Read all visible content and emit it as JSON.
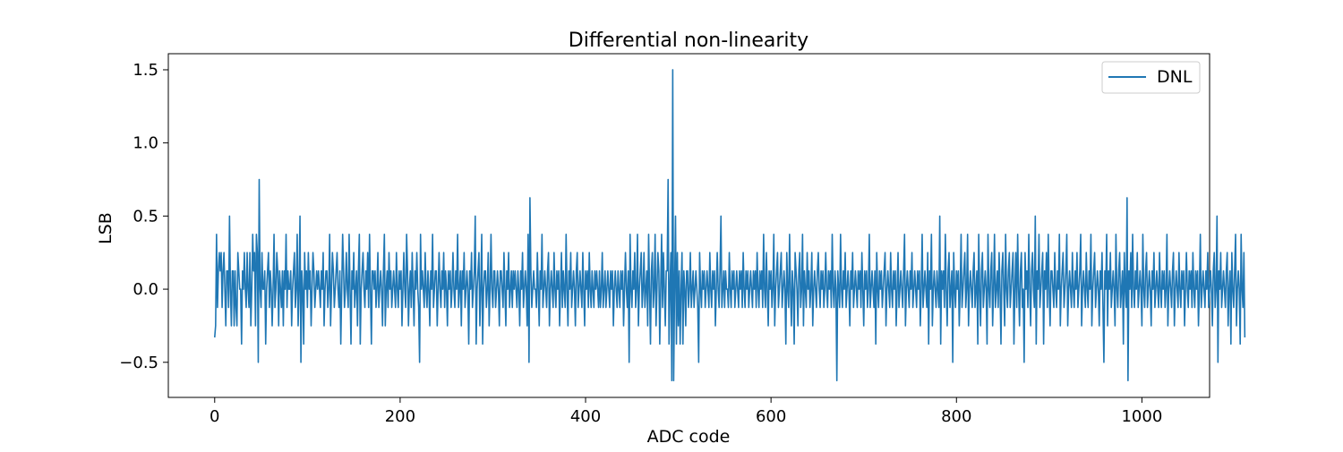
{
  "chart_data": {
    "type": "line",
    "title": "Differential non-linearity",
    "xlabel": "ADC code",
    "ylabel": "LSB",
    "xlim": [
      -50,
      1073
    ],
    "ylim": [
      -0.74,
      1.61
    ],
    "xticks": [
      0,
      200,
      400,
      600,
      800,
      1000
    ],
    "xtick_labels": [
      "0",
      "200",
      "400",
      "600",
      "800",
      "1000"
    ],
    "yticks": [
      -0.5,
      0.0,
      0.5,
      1.0,
      1.5
    ],
    "ytick_labels": [
      "−0.5",
      "0.0",
      "0.5",
      "1.0",
      "1.5"
    ],
    "grid": false,
    "legend": {
      "position": "top-right",
      "entries": [
        {
          "label": "DNL",
          "color": "#1f77b4"
        }
      ]
    },
    "series": [
      {
        "name": "DNL",
        "color": "#1f77b4",
        "x_start": 0,
        "x_step": 1,
        "values": [
          -0.33,
          -0.25,
          0.375,
          -0.125,
          0.125,
          0.25,
          0.125,
          0.25,
          -0.125,
          0.125,
          0.25,
          0.0,
          -0.25,
          0.125,
          0.125,
          -0.125,
          0.5,
          0.0,
          -0.25,
          0.125,
          0.125,
          -0.25,
          0.125,
          -0.125,
          -0.25,
          0.25,
          0.125,
          0.0,
          0.0,
          -0.375,
          0.125,
          0.0,
          0.25,
          0.0,
          -0.125,
          0.25,
          0.0,
          -0.125,
          0.25,
          -0.25,
          0.0,
          0.375,
          0.125,
          0.25,
          -0.25,
          0.375,
          0.25,
          -0.5,
          0.75,
          0.0,
          -0.125,
          0.25,
          0.0,
          0.0,
          0.125,
          -0.375,
          0.0,
          0.125,
          0.25,
          -0.125,
          0.125,
          0.0,
          -0.25,
          0.0,
          0.375,
          -0.125,
          0.0,
          0.25,
          0.125,
          -0.25,
          0.125,
          0.0,
          -0.125,
          0.125,
          -0.25,
          0.125,
          0.0,
          0.375,
          -0.125,
          0.125,
          0.0,
          0.0,
          0.125,
          -0.25,
          0.0,
          0.125,
          0.25,
          -0.125,
          0.0,
          0.375,
          -0.25,
          0.0,
          0.5,
          -0.5,
          0.125,
          0.0,
          -0.375,
          0.25,
          0.0,
          0.125,
          -0.125,
          0.25,
          0.0,
          0.125,
          -0.25,
          0.0,
          0.25,
          0.125,
          -0.125,
          0.0,
          0.125,
          0.0,
          0.125,
          0.0,
          -0.125,
          0.125,
          0.0,
          0.25,
          -0.25,
          0.0,
          0.125,
          0.125,
          -0.125,
          0.0,
          0.375,
          -0.25,
          0.0,
          0.25,
          0.125,
          -0.125,
          0.0,
          0.125,
          0.25,
          0.0,
          -0.125,
          0.125,
          -0.375,
          0.0,
          0.375,
          0.125,
          -0.125,
          0.0,
          0.25,
          0.0,
          -0.125,
          0.375,
          0.0,
          -0.375,
          0.125,
          0.0,
          0.25,
          -0.125,
          0.0,
          0.125,
          -0.25,
          0.125,
          0.375,
          -0.375,
          0.0,
          0.125,
          0.25,
          0.0,
          -0.125,
          0.125,
          0.0,
          0.25,
          -0.125,
          0.375,
          0.0,
          -0.375,
          0.125,
          0.125,
          0.0,
          0.125,
          -0.125,
          0.0,
          0.25,
          -0.125,
          0.0,
          0.125,
          0.0,
          -0.25,
          0.125,
          0.375,
          -0.25,
          0.0,
          0.125,
          -0.125,
          0.25,
          0.0,
          0.125,
          -0.125,
          0.0,
          0.125,
          0.0,
          -0.125,
          0.25,
          0.0,
          -0.125,
          0.125,
          0.0,
          0.125,
          -0.25,
          0.0,
          0.25,
          0.0,
          -0.125,
          0.375,
          0.125,
          -0.25,
          0.0,
          0.125,
          -0.125,
          0.25,
          0.0,
          -0.25,
          0.125,
          0.0,
          0.25,
          0.0,
          -0.125,
          -0.5,
          0.375,
          0.0,
          0.125,
          0.0,
          -0.125,
          0.25,
          0.0,
          -0.125,
          0.125,
          0.0,
          -0.25,
          0.125,
          0.0,
          0.375,
          -0.125,
          0.0,
          0.125,
          0.125,
          -0.25,
          0.0,
          0.25,
          0.0,
          -0.125,
          0.125,
          0.0,
          0.25,
          -0.125,
          0.125,
          0.0,
          -0.25,
          0.125,
          0.0,
          0.125,
          -0.125,
          0.0,
          0.25,
          0.0,
          -0.125,
          0.125,
          0.0,
          0.375,
          -0.125,
          0.0,
          0.125,
          -0.25,
          0.125,
          0.0,
          0.25,
          -0.125,
          0.0,
          0.125,
          0.0,
          -0.375,
          0.125,
          0.0,
          0.25,
          -0.125,
          0.0,
          0.125,
          0.5,
          -0.375,
          0.0,
          0.125,
          0.25,
          -0.25,
          0.0,
          0.375,
          -0.375,
          0.0,
          0.125,
          0.125,
          -0.125,
          0.0,
          0.25,
          -0.25,
          0.0,
          0.375,
          0.0,
          -0.125,
          0.125,
          0.125,
          -0.125,
          0.0,
          0.125,
          0.0,
          -0.25,
          0.125,
          0.125,
          0.0,
          -0.125,
          0.25,
          0.0,
          -0.25,
          0.125,
          0.0,
          0.25,
          -0.125,
          0.0,
          0.125,
          -0.125,
          0.125,
          0.0,
          0.125,
          0.0,
          -0.125,
          0.125,
          0.0,
          -0.25,
          0.125,
          0.0,
          0.25,
          -0.125,
          0.0,
          0.125,
          0.0,
          -0.25,
          0.375,
          -0.5,
          0.625,
          0.125,
          -0.125,
          0.0,
          0.125,
          0.0,
          0.0,
          -0.125,
          0.25,
          0.0,
          -0.25,
          0.125,
          0.0,
          0.375,
          -0.125,
          0.0,
          0.125,
          0.0,
          -0.125,
          0.125,
          0.25,
          -0.25,
          0.0,
          0.125,
          0.0,
          -0.125,
          0.25,
          0.0,
          -0.125,
          0.125,
          0.0,
          0.125,
          -0.25,
          0.0,
          0.25,
          -0.125,
          0.125,
          0.0,
          -0.125,
          0.375,
          0.0,
          -0.25,
          0.125,
          0.0,
          0.25,
          -0.125,
          0.0,
          0.125,
          0.0,
          -0.25,
          0.125,
          0.25,
          -0.125,
          0.0,
          0.125,
          0.0,
          -0.125,
          0.25,
          0.0,
          -0.25,
          0.125,
          0.0,
          0.125,
          -0.125,
          0.25,
          0.0,
          -0.125,
          0.125,
          0.0,
          -0.125,
          0.125,
          0.0,
          0.125,
          0.0,
          -0.125,
          0.125,
          -0.125,
          0.0,
          0.25,
          -0.125,
          0.0,
          0.125,
          -0.125,
          0.0,
          0.125,
          0.0,
          -0.125,
          0.125,
          0.0,
          0.125,
          -0.25,
          0.0,
          0.125,
          0.0,
          -0.125,
          0.125,
          0.0,
          -0.125,
          0.125,
          0.0,
          0.125,
          -0.25,
          0.0,
          0.25,
          0.0,
          -0.125,
          0.125,
          -0.5,
          0.375,
          0.0,
          -0.125,
          0.125,
          0.0,
          0.25,
          -0.125,
          0.0,
          0.375,
          -0.25,
          0.0,
          0.125,
          0.25,
          -0.125,
          0.0,
          0.25,
          -0.125,
          0.0,
          0.125,
          -0.25,
          0.375,
          0.0,
          -0.375,
          0.125,
          0.25,
          -0.125,
          0.0,
          0.375,
          -0.25,
          0.0,
          0.25,
          0.125,
          -0.375,
          0.0,
          0.375,
          -0.125,
          0.25,
          0.0,
          -0.25,
          0.125,
          0.125,
          0.75,
          -0.375,
          0.0,
          0.25,
          -0.625,
          1.5,
          -0.625,
          0.0,
          0.5,
          -0.375,
          0.25,
          -0.25,
          0.125,
          -0.375,
          0.0,
          0.25,
          -0.375,
          0.125,
          0.0,
          -0.25,
          0.125,
          0.125,
          -0.125,
          0.0,
          0.25,
          -0.125,
          0.0,
          0.125,
          -0.125,
          0.0,
          0.125,
          0.0,
          -0.125,
          -0.5,
          0.25,
          0.0,
          -0.125,
          0.125,
          0.0,
          0.125,
          -0.125,
          0.0,
          0.125,
          0.0,
          -0.125,
          0.25,
          0.0,
          -0.125,
          0.125,
          0.0,
          0.125,
          -0.25,
          0.0,
          0.25,
          0.0,
          -0.125,
          0.125,
          0.5,
          -0.125,
          0.0,
          0.125,
          -0.125,
          0.125,
          0.0,
          0.0,
          -0.125,
          0.25,
          0.0,
          -0.125,
          0.125,
          0.0,
          0.125,
          -0.125,
          0.0,
          0.125,
          0.0,
          -0.125,
          0.125,
          0.0,
          0.125,
          -0.125,
          0.25,
          0.0,
          -0.125,
          0.125,
          0.0,
          0.125,
          -0.125,
          0.0,
          0.125,
          0.0,
          -0.125,
          0.125,
          0.0,
          0.125,
          -0.125,
          0.25,
          0.0,
          -0.125,
          0.125,
          0.0,
          0.125,
          -0.125,
          0.375,
          0.0,
          -0.125,
          0.25,
          0.0,
          -0.25,
          0.125,
          0.0,
          0.125,
          -0.125,
          0.0,
          0.375,
          -0.25,
          0.0,
          0.125,
          0.25,
          -0.125,
          0.0,
          0.125,
          0.25,
          -0.125,
          0.0,
          0.125,
          0.0,
          -0.375,
          0.25,
          0.0,
          -0.125,
          0.375,
          0.0,
          -0.25,
          0.125,
          0.0,
          -0.375,
          0.25,
          0.125,
          0.0,
          -0.25,
          0.125,
          0.25,
          -0.125,
          0.0,
          0.375,
          -0.25,
          0.125,
          0.0,
          -0.125,
          0.25,
          0.0,
          0.125,
          -0.125,
          0.0,
          0.25,
          -0.25,
          0.0,
          0.125,
          0.0,
          -0.125,
          0.125,
          0.25,
          0.0,
          -0.125,
          0.125,
          0.0,
          0.125,
          -0.125,
          0.0,
          0.25,
          0.0,
          -0.125,
          0.125,
          0.0,
          0.125,
          -0.125,
          0.375,
          0.0,
          -0.125,
          0.125,
          0.0,
          -0.625,
          0.125,
          0.0,
          -0.125,
          0.375,
          0.0,
          -0.125,
          0.125,
          0.0,
          0.25,
          -0.125,
          0.0,
          0.125,
          0.0,
          -0.25,
          0.125,
          0.0,
          0.25,
          -0.125,
          0.0,
          0.125,
          0.0,
          -0.125,
          0.125,
          0.0,
          0.125,
          -0.125,
          0.25,
          0.0,
          -0.25,
          0.125,
          0.0,
          0.125,
          -0.125,
          0.0,
          0.375,
          -0.125,
          0.0,
          0.125,
          0.0,
          -0.125,
          0.125,
          -0.375,
          0.25,
          0.0,
          -0.125,
          0.125,
          0.0,
          0.125,
          -0.125,
          0.0,
          0.125,
          0.25,
          -0.25,
          0.0,
          0.125,
          0.0,
          -0.125,
          0.25,
          0.0,
          -0.125,
          0.125,
          0.0,
          0.125,
          -0.25,
          0.0,
          0.25,
          -0.125,
          0.0,
          0.125,
          0.0,
          -0.125,
          0.125,
          0.375,
          -0.25,
          0.0,
          0.125,
          0.0,
          -0.125,
          0.125,
          0.0,
          0.25,
          -0.125,
          0.0,
          0.125,
          0.0,
          -0.125,
          0.125,
          0.0,
          0.125,
          -0.25,
          0.0,
          0.375,
          -0.125,
          0.0,
          0.125,
          0.0,
          -0.125,
          0.25,
          -0.375,
          0.125,
          0.0,
          0.375,
          -0.25,
          0.0,
          0.125,
          0.0,
          -0.125,
          0.125,
          0.0,
          -0.125,
          0.5,
          -0.375,
          0.125,
          0.0,
          0.125,
          -0.125,
          0.375,
          0.0,
          -0.25,
          0.125,
          0.25,
          -0.125,
          0.0,
          0.125,
          -0.5,
          0.25,
          0.0,
          -0.125,
          0.125,
          0.0,
          0.125,
          -0.25,
          0.0,
          0.375,
          -0.125,
          0.0,
          0.125,
          0.25,
          -0.125,
          0.0,
          0.375,
          -0.25,
          0.0,
          0.125,
          0.0,
          -0.125,
          0.125,
          0.25,
          -0.125,
          0.0,
          0.125,
          -0.375,
          0.375,
          0.0,
          -0.25,
          0.125,
          0.25,
          -0.125,
          0.0,
          0.125,
          0.0,
          -0.375,
          0.375,
          0.0,
          -0.125,
          0.125,
          0.25,
          -0.25,
          0.0,
          0.375,
          -0.125,
          0.0,
          0.125,
          -0.125,
          0.25,
          0.0,
          -0.375,
          0.125,
          0.25,
          0.0,
          -0.25,
          0.375,
          0.0,
          -0.125,
          0.125,
          0.25,
          -0.125,
          0.0,
          0.125,
          0.25,
          -0.375,
          0.0,
          0.25,
          -0.125,
          0.375,
          0.0,
          -0.25,
          0.125,
          0.25,
          -0.125,
          0.0,
          -0.5,
          0.25,
          0.0,
          0.125,
          -0.125,
          0.375,
          0.0,
          -0.25,
          0.125,
          0.25,
          0.0,
          -0.125,
          0.5,
          -0.375,
          0.125,
          0.0,
          0.375,
          -0.125,
          0.0,
          0.125,
          0.25,
          -0.375,
          0.125,
          0.0,
          0.25,
          -0.125,
          0.375,
          0.0,
          -0.25,
          0.125,
          0.125,
          0.0,
          -0.125,
          0.25,
          0.0,
          -0.125,
          0.125,
          0.0,
          0.375,
          -0.25,
          0.0,
          0.125,
          0.25,
          -0.125,
          0.0,
          0.125,
          0.375,
          -0.25,
          0.0,
          0.125,
          0.0,
          -0.125,
          0.25,
          0.0,
          -0.125,
          0.125,
          0.0,
          0.25,
          -0.125,
          0.0,
          0.125,
          0.375,
          -0.25,
          0.0,
          0.125,
          0.0,
          -0.125,
          0.25,
          0.0,
          -0.125,
          0.125,
          0.0,
          0.375,
          -0.25,
          0.0,
          0.125,
          0.25,
          -0.125,
          0.0,
          0.125,
          0.0,
          -0.25,
          0.125,
          0.0,
          0.25,
          -0.125,
          -0.5,
          0.125,
          0.0,
          0.375,
          -0.25,
          0.125,
          0.0,
          0.25,
          -0.125,
          0.0,
          0.125,
          0.0,
          -0.25,
          0.375,
          0.0,
          -0.125,
          0.125,
          0.25,
          -0.125,
          0.0,
          0.125,
          -0.375,
          0.25,
          0.0,
          -0.125,
          0.625,
          -0.625,
          0.125,
          0.0,
          0.25,
          -0.125,
          0.375,
          0.0,
          -0.125,
          0.125,
          0.0,
          0.25,
          -0.125,
          0.0,
          0.125,
          0.0,
          -0.25,
          0.375,
          0.0,
          -0.125,
          0.125,
          0.25,
          -0.125,
          0.0,
          0.125,
          0.0,
          -0.25,
          0.125,
          0.0,
          0.25,
          -0.125,
          0.0,
          0.125,
          0.0,
          -0.125,
          0.25,
          0.0,
          -0.125,
          0.125,
          0.0,
          0.125,
          -0.125,
          0.0,
          0.375,
          -0.25,
          0.0,
          0.125,
          0.0,
          -0.125,
          0.125,
          0.25,
          -0.25,
          0.0,
          0.125,
          0.0,
          -0.125,
          0.25,
          0.0,
          -0.125,
          0.125,
          0.0,
          0.125,
          -0.25,
          0.0,
          0.25,
          0.0,
          -0.125,
          0.125,
          0.0,
          0.125,
          -0.125,
          0.25,
          0.0,
          -0.125,
          0.125,
          0.0,
          0.125,
          -0.25,
          0.0,
          0.375,
          -0.125,
          0.0,
          0.125,
          0.0,
          -0.125,
          0.125,
          0.0,
          0.25,
          -0.125,
          0.0,
          0.125,
          0.0,
          -0.25,
          0.125,
          0.25,
          -0.125,
          0.0,
          0.5,
          -0.5,
          0.125,
          0.0,
          0.25,
          -0.125,
          0.0,
          0.125,
          0.0,
          -0.125,
          0.125,
          0.25,
          -0.25,
          0.0,
          0.125,
          -0.375,
          0.25,
          0.0,
          -0.125,
          0.125,
          0.375,
          -0.25,
          0.0,
          0.125,
          0.0,
          -0.375,
          0.375,
          0.0,
          -0.125,
          0.25,
          -0.33
        ]
      }
    ]
  }
}
